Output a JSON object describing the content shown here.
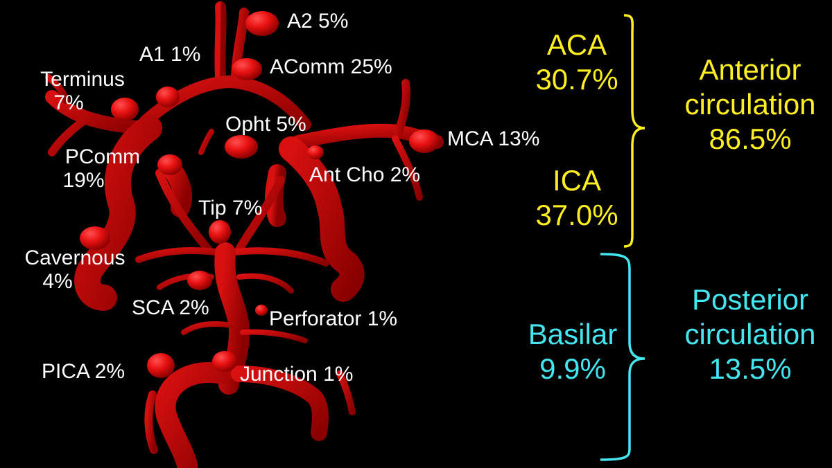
{
  "colors": {
    "background": "#000000",
    "vessel": "#c60b0b",
    "vessel_dark": "#7d0000",
    "aneurysm": "#e81212",
    "label_white": "#ffffff",
    "anterior_yellow": "#ffee22",
    "posterior_cyan": "#44e6f0"
  },
  "labels": {
    "a2": "A2 5%",
    "a1": "A1 1%",
    "acomm": "AComm 25%",
    "terminus_line1": "Terminus",
    "terminus_line2": "7%",
    "opht": "Opht 5%",
    "mca": "MCA 13%",
    "pcomm_line1": "PComm",
    "pcomm_line2": "19%",
    "ant_cho": "Ant Cho 2%",
    "tip": "Tip 7%",
    "cavernous_line1": "Cavernous",
    "cavernous_line2": "4%",
    "sca": "SCA 2%",
    "perforator": "Perforator 1%",
    "pica": "PICA 2%",
    "junction": "Junction 1%"
  },
  "groups": {
    "aca_line1": "ACA",
    "aca_line2": "30.7%",
    "ica_line1": "ICA",
    "ica_line2": "37.0%",
    "basilar_line1": "Basilar",
    "basilar_line2": "9.9%",
    "anterior_line1": "Anterior",
    "anterior_line2": "circulation",
    "anterior_line3": "86.5%",
    "posterior_line1": "Posterior",
    "posterior_line2": "circulation",
    "posterior_line3": "13.5%"
  }
}
